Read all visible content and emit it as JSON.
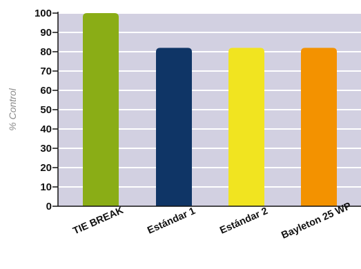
{
  "chart_data": {
    "type": "bar",
    "categories": [
      "TIE BREAK",
      "Estándar 1",
      "Estándar 2",
      "Bayleton 25 WP"
    ],
    "values": [
      100,
      82,
      82,
      82
    ],
    "colors": [
      "#8aad16",
      "#0f3566",
      "#f1e420",
      "#f39200"
    ],
    "ylabel": "% Control",
    "xlabel": "",
    "ylim": [
      0,
      100
    ],
    "yticks": [
      0,
      10,
      20,
      30,
      40,
      50,
      60,
      70,
      80,
      90,
      100
    ],
    "grid": true,
    "plot_background": "#d2d0e1",
    "gridline_color": "#ffffff"
  }
}
